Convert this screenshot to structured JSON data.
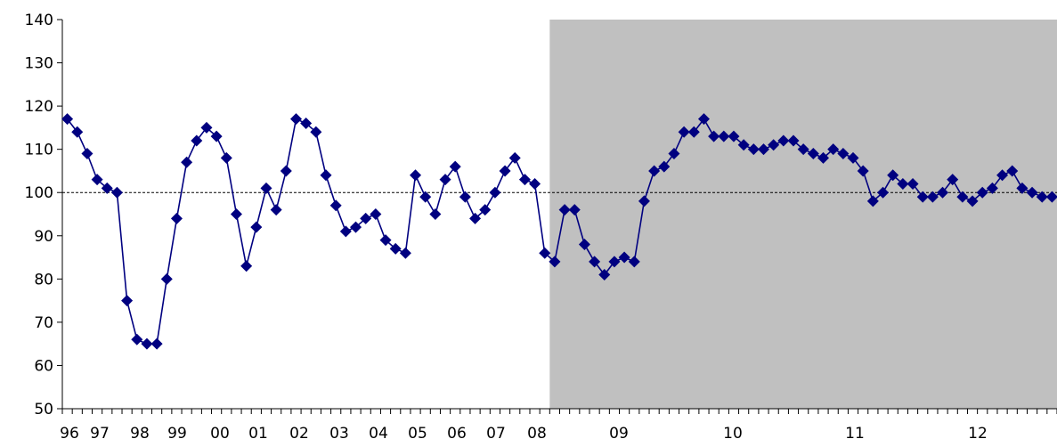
{
  "chart_data": {
    "type": "line",
    "title": "",
    "xlabel": "",
    "ylabel": "",
    "ylim": [
      50,
      140
    ],
    "yticks": [
      50,
      60,
      70,
      80,
      90,
      100,
      110,
      120,
      130,
      140
    ],
    "ytick_labels": [
      "50",
      "60",
      "70",
      "80",
      "90",
      "100",
      "110",
      "120",
      "130",
      "140"
    ],
    "x_period_labels": [
      "96",
      "97",
      "98",
      "99",
      "00",
      "01",
      "02",
      "03",
      "04",
      "05",
      "06",
      "07",
      "08",
      "09",
      "10",
      "11",
      "12"
    ],
    "reference_line": 100,
    "grid": false,
    "legend": "none",
    "x_domain": [
      0,
      100
    ],
    "shaded_region": {
      "from": 49,
      "to": 100,
      "color": "#c0c0c0"
    },
    "x_tick_count": 100,
    "series": [
      {
        "color": "#000080",
        "marker": "diamond",
        "x": [
          0.5,
          1.5,
          2.5,
          3.5,
          4.5,
          5.5,
          6.5,
          7.5,
          8.5,
          9.5,
          10.5,
          11.5,
          12.5,
          13.5,
          14.5,
          15.5,
          16.5,
          17.5,
          18.5,
          19.5,
          20.5,
          21.5,
          22.5,
          23.5,
          24.5,
          25.5,
          26.5,
          27.5,
          28.5,
          29.5,
          30.5,
          31.5,
          32.5,
          33.5,
          34.5,
          35.5,
          36.5,
          37.5,
          38.5,
          39.5,
          40.5,
          41.5,
          42.5,
          43.5,
          44.5,
          45.5,
          46.5,
          47.5,
          48.5,
          49.5,
          50.5,
          51.5,
          52.5,
          53.5,
          54.5,
          55.5,
          56.5,
          57.5,
          58.5,
          59.5,
          60.5,
          61.5,
          62.5,
          63.5,
          64.5,
          65.5,
          66.5,
          67.5,
          68.5,
          69.5,
          70.5,
          71.5,
          72.5,
          73.5,
          74.5,
          75.5,
          76.5,
          77.5,
          78.5,
          79.5,
          80.5,
          81.5,
          82.5,
          83.5,
          84.5,
          85.5,
          86.5,
          87.5,
          88.5,
          89.5,
          90.5,
          91.5,
          92.5,
          93.5,
          94.5,
          95.5,
          96.5,
          97.5,
          98.5,
          99.5
        ],
        "values": [
          117,
          114,
          109,
          103,
          101,
          100,
          75,
          66,
          65,
          65,
          80,
          94,
          107,
          112,
          115,
          113,
          108,
          95,
          83,
          92,
          101,
          96,
          105,
          117,
          116,
          114,
          104,
          97,
          91,
          92,
          94,
          95,
          89,
          87,
          86,
          104,
          99,
          95,
          103,
          106,
          99,
          94,
          96,
          100,
          105,
          108,
          103,
          102,
          86,
          84,
          96,
          96,
          88,
          84,
          81,
          84,
          85,
          84,
          98,
          105,
          106,
          109,
          114,
          114,
          117,
          113,
          113,
          113,
          111,
          110,
          110,
          111,
          112,
          112,
          110,
          109,
          108,
          110,
          109,
          108,
          105,
          98,
          100,
          104,
          102,
          102,
          99,
          99,
          100,
          103,
          99,
          98,
          100,
          101,
          104,
          105,
          101,
          100,
          99,
          99
        ]
      }
    ]
  }
}
